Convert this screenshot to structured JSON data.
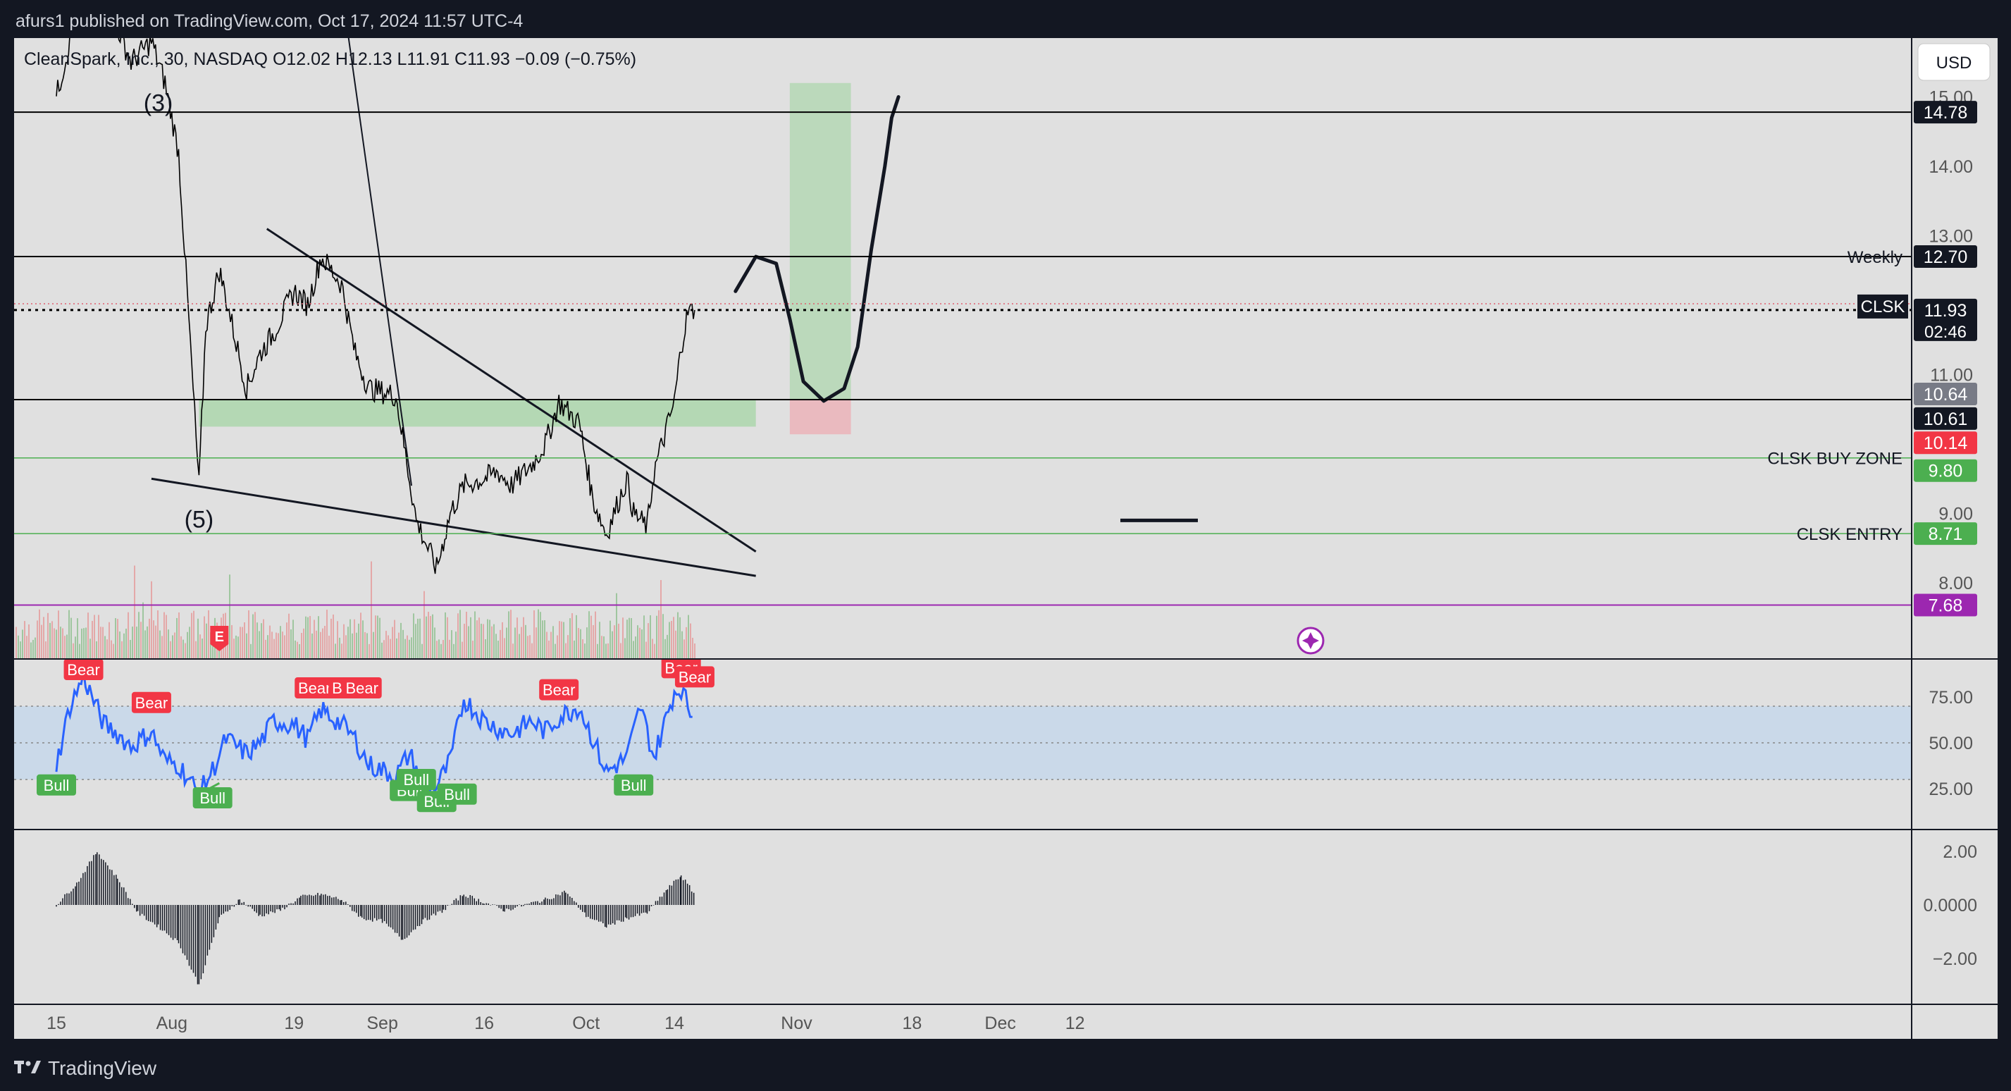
{
  "header": {
    "published": "afurs1 published on TradingView.com, Oct 17, 2024 11:57 UTC-4"
  },
  "legend": {
    "symbol": "CleanSpark, Inc., 30, NASDAQ",
    "open_label": "O",
    "open": "12.02",
    "high_label": "H",
    "high": "12.13",
    "low_label": "L",
    "low": "11.91",
    "close_label": "C",
    "close": "11.93",
    "change": "−0.09 (−0.75%)"
  },
  "currency_button": "USD",
  "footer": {
    "brand": "TradingView",
    "logo_icon": "tradingview-logo-icon"
  },
  "colors": {
    "background": "#e0e0e0",
    "frame": "#131722",
    "price_line": "#000000",
    "rsi_line": "#2962ff",
    "bull": "#4caf50",
    "bear": "#f23645",
    "green_zone": "#8fd18f",
    "red_zone": "#f0a0a8",
    "purple": "#9c27b0"
  },
  "chart_data": {
    "type": "line",
    "price_axis": {
      "ticks": [
        8.0,
        9.0,
        10.0,
        11.0,
        12.0,
        13.0,
        14.0,
        15.0
      ],
      "tick_labels": [
        "8.00",
        "9.00",
        "",
        "11.00",
        "",
        "13.00",
        "14.00",
        "15.00"
      ]
    },
    "time_axis": {
      "labels": [
        "15",
        "Aug",
        "19",
        "Sep",
        "16",
        "Oct",
        "14",
        "Nov",
        "18",
        "Dec",
        "12"
      ],
      "dates": [
        "2024-07-15",
        "2024-08-01",
        "2024-08-19",
        "2024-09-01",
        "2024-09-16",
        "2024-10-01",
        "2024-10-14",
        "2024-11-01",
        "2024-11-18",
        "2024-12-01",
        "2024-12-12"
      ]
    },
    "price_series": {
      "dates": [
        "2024-07-15",
        "2024-07-17",
        "2024-07-19",
        "2024-07-22",
        "2024-07-24",
        "2024-07-26",
        "2024-07-29",
        "2024-07-31",
        "2024-08-02",
        "2024-08-05",
        "2024-08-06",
        "2024-08-08",
        "2024-08-09",
        "2024-08-12",
        "2024-08-14",
        "2024-08-16",
        "2024-08-19",
        "2024-08-21",
        "2024-08-23",
        "2024-08-26",
        "2024-08-28",
        "2024-08-30",
        "2024-09-03",
        "2024-09-05",
        "2024-09-06",
        "2024-09-09",
        "2024-09-11",
        "2024-09-13",
        "2024-09-16",
        "2024-09-18",
        "2024-09-20",
        "2024-09-23",
        "2024-09-25",
        "2024-09-27",
        "2024-09-30",
        "2024-10-02",
        "2024-10-04",
        "2024-10-07",
        "2024-10-08",
        "2024-10-10",
        "2024-10-11",
        "2024-10-14",
        "2024-10-15",
        "2024-10-16",
        "2024-10-17"
      ],
      "close": [
        15.0,
        15.8,
        16.5,
        17.0,
        16.0,
        15.5,
        15.8,
        15.2,
        14.2,
        9.4,
        11.7,
        12.5,
        12.1,
        10.8,
        11.3,
        11.6,
        12.2,
        12.0,
        12.7,
        12.3,
        11.3,
        10.8,
        10.7,
        9.5,
        8.9,
        8.2,
        9.0,
        9.4,
        9.5,
        9.6,
        9.4,
        9.7,
        10.0,
        10.6,
        10.3,
        9.2,
        8.7,
        9.5,
        9.0,
        8.8,
        9.6,
        10.6,
        11.4,
        11.9,
        11.93
      ]
    },
    "horizontal_levels": [
      {
        "price": 14.78,
        "label": "14.78",
        "line_color": "#000000"
      },
      {
        "price": 12.7,
        "label": "12.70",
        "text": "Weekly",
        "line_color": "#000000"
      },
      {
        "price": 11.93,
        "label": "11.93",
        "tag": "CLSK",
        "countdown": "02:46",
        "line_color": "#000000",
        "dotted": true
      },
      {
        "price": 10.64,
        "label": "10.64",
        "line_color": "#000000"
      },
      {
        "price": 10.61,
        "label": "10.61"
      },
      {
        "price": 10.14,
        "label": "10.14"
      },
      {
        "price": 9.8,
        "label": "9.80",
        "text": "CLSK BUY ZONE",
        "line_color": "#4caf50"
      },
      {
        "price": 8.71,
        "label": "8.71",
        "text": "CLSK ENTRY",
        "line_color": "#4caf50"
      },
      {
        "price": 7.68,
        "label": "7.68",
        "line_color": "#9c27b0"
      }
    ],
    "wave_labels": [
      {
        "text": "(3)",
        "date": "2024-07-30",
        "price": 14.9
      },
      {
        "text": "(5)",
        "date": "2024-08-05",
        "price": 8.9
      }
    ],
    "trendlines": [
      {
        "from": {
          "date": "2024-08-15",
          "price": 13.1
        },
        "to": {
          "date": "2024-10-26",
          "price": 8.45
        }
      },
      {
        "from": {
          "date": "2024-07-29",
          "price": 9.5
        },
        "to": {
          "date": "2024-10-26",
          "price": 8.1
        }
      }
    ],
    "demand_zone": {
      "from_date": "2024-08-05",
      "to_date": "2024-10-26",
      "top": 10.64,
      "bottom": 10.25
    },
    "projection_box": {
      "from_date": "2024-10-31",
      "to_date": "2024-11-09",
      "top": 15.2,
      "entry": 10.64,
      "stop": 10.14
    },
    "projected_path": {
      "dates": [
        "2024-10-23",
        "2024-10-26",
        "2024-10-29",
        "2024-10-31",
        "2024-11-02",
        "2024-11-05",
        "2024-11-08",
        "2024-11-10",
        "2024-11-12",
        "2024-11-14",
        "2024-11-15",
        "2024-11-16"
      ],
      "prices": [
        12.2,
        12.7,
        12.6,
        11.8,
        10.9,
        10.62,
        10.8,
        11.4,
        12.8,
        14.0,
        14.7,
        15.0
      ]
    },
    "rsi": {
      "ticks": [
        25,
        50,
        75
      ],
      "tick_labels": [
        "25.00",
        "50.00",
        "75.00"
      ],
      "band": [
        30,
        70
      ],
      "dates": [
        "2024-07-15",
        "2024-07-17",
        "2024-07-19",
        "2024-07-22",
        "2024-07-24",
        "2024-07-26",
        "2024-07-29",
        "2024-07-31",
        "2024-08-02",
        "2024-08-05",
        "2024-08-07",
        "2024-08-09",
        "2024-08-12",
        "2024-08-14",
        "2024-08-16",
        "2024-08-19",
        "2024-08-21",
        "2024-08-23",
        "2024-08-26",
        "2024-08-28",
        "2024-08-30",
        "2024-09-03",
        "2024-09-05",
        "2024-09-07",
        "2024-09-09",
        "2024-09-11",
        "2024-09-13",
        "2024-09-16",
        "2024-09-18",
        "2024-09-20",
        "2024-09-23",
        "2024-09-25",
        "2024-09-27",
        "2024-09-30",
        "2024-10-02",
        "2024-10-04",
        "2024-10-07",
        "2024-10-09",
        "2024-10-11",
        "2024-10-14",
        "2024-10-15",
        "2024-10-16",
        "2024-10-17"
      ],
      "values": [
        38,
        70,
        86,
        60,
        55,
        48,
        56,
        40,
        38,
        22,
        35,
        52,
        44,
        50,
        62,
        60,
        52,
        68,
        60,
        52,
        38,
        32,
        44,
        28,
        26,
        40,
        74,
        62,
        58,
        55,
        62,
        56,
        64,
        70,
        52,
        34,
        42,
        70,
        42,
        78,
        80,
        70,
        62
      ],
      "signals": [
        {
          "text": "Bull",
          "date": "2024-07-15",
          "value": 27
        },
        {
          "text": "Bear",
          "date": "2024-07-19",
          "value": 90
        },
        {
          "text": "Bear",
          "date": "2024-07-29",
          "value": 72
        },
        {
          "text": "Bull",
          "date": "2024-08-07",
          "value": 20
        },
        {
          "text": "Bear",
          "date": "2024-08-22",
          "value": 80
        },
        {
          "text": "Bear",
          "date": "2024-08-27",
          "value": 80
        },
        {
          "text": "Bear",
          "date": "2024-08-29",
          "value": 80
        },
        {
          "text": "Bull",
          "date": "2024-09-05",
          "value": 24
        },
        {
          "text": "Bull",
          "date": "2024-09-06",
          "value": 30
        },
        {
          "text": "Bull",
          "date": "2024-09-09",
          "value": 18
        },
        {
          "text": "Bull",
          "date": "2024-09-12",
          "value": 22
        },
        {
          "text": "Bear",
          "date": "2024-09-27",
          "value": 79
        },
        {
          "text": "Bull",
          "date": "2024-10-08",
          "value": 27
        },
        {
          "text": "Bear",
          "date": "2024-10-15",
          "value": 91
        },
        {
          "text": "Bear",
          "date": "2024-10-17",
          "value": 86
        }
      ]
    },
    "oscillator": {
      "ticks": [
        -2,
        0,
        2
      ],
      "tick_labels": [
        "−2.00",
        "0.0000",
        "2.00"
      ],
      "dates": [
        "2024-07-15",
        "2024-07-18",
        "2024-07-21",
        "2024-07-24",
        "2024-07-27",
        "2024-07-30",
        "2024-08-02",
        "2024-08-05",
        "2024-08-08",
        "2024-08-11",
        "2024-08-14",
        "2024-08-17",
        "2024-08-20",
        "2024-08-23",
        "2024-08-26",
        "2024-08-29",
        "2024-09-01",
        "2024-09-04",
        "2024-09-07",
        "2024-09-10",
        "2024-09-13",
        "2024-09-16",
        "2024-09-19",
        "2024-09-22",
        "2024-09-25",
        "2024-09-28",
        "2024-10-01",
        "2024-10-04",
        "2024-10-07",
        "2024-10-10",
        "2024-10-13",
        "2024-10-15",
        "2024-10-17"
      ],
      "values": [
        0.0,
        0.8,
        2.0,
        1.0,
        -0.3,
        -0.8,
        -1.4,
        -3.0,
        -0.5,
        0.2,
        -0.4,
        -0.2,
        0.3,
        0.4,
        0.2,
        -0.5,
        -0.6,
        -1.3,
        -0.6,
        -0.2,
        0.4,
        0.1,
        -0.2,
        0.0,
        0.2,
        0.5,
        -0.4,
        -0.8,
        -0.5,
        -0.3,
        0.6,
        1.1,
        0.4
      ]
    },
    "events": [
      {
        "text": "E",
        "date": "2024-08-08"
      }
    ]
  }
}
